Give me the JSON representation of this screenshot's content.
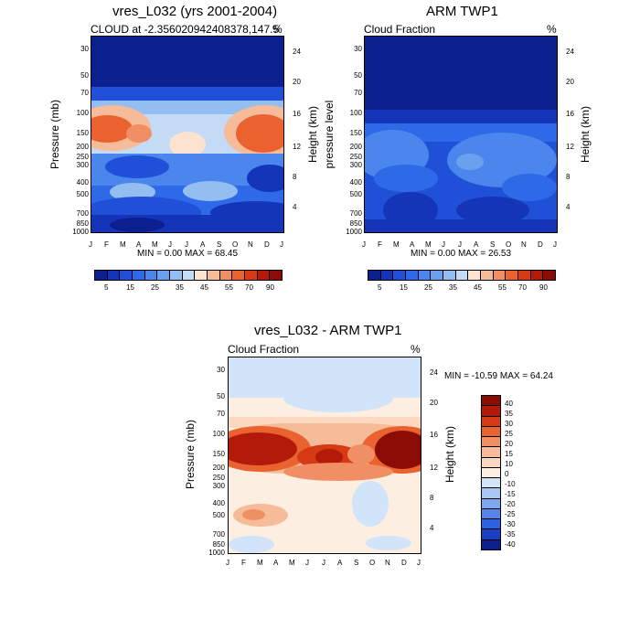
{
  "chart_data": [
    {
      "type": "heatmap",
      "title": "vres_L032 (yrs 2001-2004)",
      "subtitle_left": "CLOUD at -2.356020942408378,147.5",
      "subtitle_right": "%",
      "ylabel": "Pressure (mb)",
      "ylabel_right": "Height (km)",
      "x_ticks": [
        "J",
        "F",
        "M",
        "A",
        "M",
        "J",
        "J",
        "A",
        "S",
        "O",
        "N",
        "D",
        "J"
      ],
      "y_ticks": [
        "30",
        "50",
        "70",
        "100",
        "150",
        "200",
        "250",
        "300",
        "400",
        "500",
        "700",
        "850",
        "1000"
      ],
      "y_right_ticks": [
        "24",
        "20",
        "16",
        "12",
        "8",
        "4"
      ],
      "min_max": "MIN =   0.00 MAX =  68.45",
      "colorbar_labels": [
        "5",
        "15",
        "25",
        "35",
        "45",
        "55",
        "70",
        "90"
      ]
    },
    {
      "type": "heatmap",
      "title": "ARM TWP1",
      "subtitle_left": "Cloud Fraction",
      "subtitle_right": "%",
      "ylabel": "pressure level",
      "ylabel_right": "Height (km)",
      "x_ticks": [
        "J",
        "F",
        "M",
        "A",
        "M",
        "J",
        "J",
        "A",
        "S",
        "O",
        "N",
        "D",
        "J"
      ],
      "y_ticks": [
        "30",
        "50",
        "70",
        "100",
        "150",
        "200",
        "250",
        "300",
        "400",
        "500",
        "700",
        "850",
        "1000"
      ],
      "y_right_ticks": [
        "24",
        "20",
        "16",
        "12",
        "8",
        "4"
      ],
      "min_max": "MIN =   0.00 MAX =  26.53",
      "colorbar_labels": [
        "5",
        "15",
        "25",
        "35",
        "45",
        "55",
        "70",
        "90"
      ]
    },
    {
      "type": "heatmap",
      "title": "vres_L032 - ARM TWP1",
      "subtitle_left": "Cloud Fraction",
      "subtitle_right": "%",
      "ylabel": "Pressure (mb)",
      "ylabel_right": "Height (km)",
      "x_ticks": [
        "J",
        "F",
        "M",
        "A",
        "M",
        "J",
        "J",
        "A",
        "S",
        "O",
        "N",
        "D",
        "J"
      ],
      "y_ticks": [
        "30",
        "50",
        "70",
        "100",
        "150",
        "200",
        "250",
        "300",
        "400",
        "500",
        "700",
        "850",
        "1000"
      ],
      "y_right_ticks": [
        "24",
        "20",
        "16",
        "12",
        "8",
        "4"
      ],
      "min_max": "MIN = -10.59 MAX =  64.24",
      "colorbar_labels": [
        "40",
        "35",
        "30",
        "25",
        "20",
        "15",
        "10",
        "0",
        "-10",
        "-15",
        "-20",
        "-25",
        "-30",
        "-35",
        "-40"
      ]
    }
  ],
  "colors": {
    "seq_palette": [
      "#0b1f8f",
      "#1535b8",
      "#2050d8",
      "#2e6ae8",
      "#4a86ec",
      "#6aa1ee",
      "#94bdf2",
      "#c4dbf6",
      "#fbe3cf",
      "#f6bb98",
      "#f18f64",
      "#ea6230",
      "#d53a15",
      "#b31a0a",
      "#8a0c05"
    ],
    "div_palette": [
      "#8a0c05",
      "#b31a0a",
      "#d53a15",
      "#ea6230",
      "#f18f64",
      "#f6bb98",
      "#fbd8bf",
      "#fdeee2",
      "#d2e4fa",
      "#a9c7f3",
      "#7ea8ee",
      "#5585ea",
      "#2e62e0",
      "#1a3fc4",
      "#0b1f8f"
    ]
  }
}
